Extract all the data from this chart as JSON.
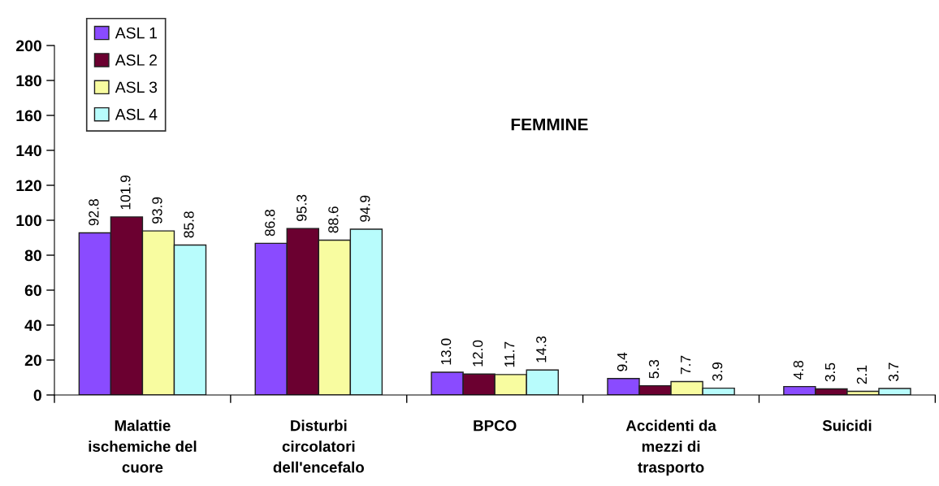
{
  "chart_data": {
    "type": "bar",
    "title": "FEMMINE",
    "categories": [
      "Malattie\nischemiche del\ncuore",
      "Disturbi\ncircolatori\ndell'encefalo",
      "BPCO",
      "Accidenti da\nmezzi di\ntrasporto",
      "Suicidi"
    ],
    "series": [
      {
        "name": "ASL 1",
        "color": "#8a4bff",
        "values": [
          92.8,
          86.8,
          13.0,
          9.4,
          4.8
        ],
        "value_labels": [
          "92.8",
          "86.8",
          "13.0",
          "9.4",
          "4.8"
        ]
      },
      {
        "name": "ASL 2",
        "color": "#6b0030",
        "values": [
          101.9,
          95.3,
          12.0,
          5.3,
          3.5
        ],
        "value_labels": [
          "101.9",
          "95.3",
          "12.0",
          "5.3",
          "3.5"
        ]
      },
      {
        "name": "ASL 3",
        "color": "#f8fca0",
        "values": [
          93.9,
          88.6,
          11.7,
          7.7,
          2.1
        ],
        "value_labels": [
          "93.9",
          "88.6",
          "11.7",
          "7.7",
          "2.1"
        ]
      },
      {
        "name": "ASL 4",
        "color": "#b8fcfc",
        "values": [
          85.8,
          94.9,
          14.3,
          3.9,
          3.7
        ],
        "value_labels": [
          "85.8",
          "94.9",
          "14.3",
          "3.9",
          "3.7"
        ]
      }
    ],
    "ylim": [
      0,
      200
    ],
    "yticks": [
      0,
      20,
      40,
      60,
      80,
      100,
      120,
      140,
      160,
      180,
      200
    ],
    "grid": false,
    "legend": "top left"
  }
}
